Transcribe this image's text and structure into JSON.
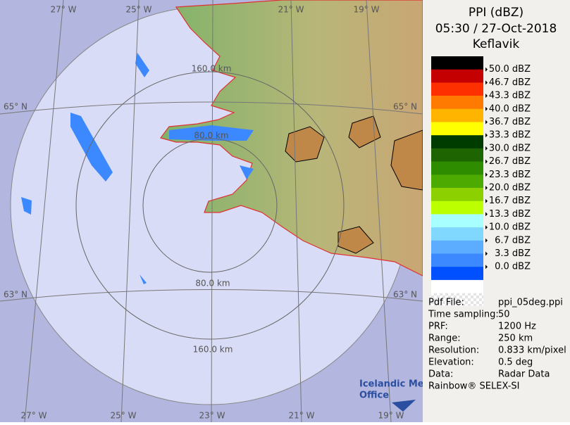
{
  "header": {
    "title": "PPI (dBZ)",
    "datetime": "05:30 / 27-Oct-2018",
    "site": "Keflavik"
  },
  "legend": {
    "colors": [
      "#000000",
      "#c40000",
      "#ff3000",
      "#ff7a00",
      "#ffb400",
      "#ffff00",
      "#003c00",
      "#1e6400",
      "#2e8c00",
      "#4caa00",
      "#8cd000",
      "#bcff00",
      "#a8ffff",
      "#80d8ff",
      "#5cacff",
      "#3c88ff",
      "#0050ff",
      "#ffffff"
    ],
    "labels": [
      "50.0 dBZ",
      "46.7 dBZ",
      "43.3 dBZ",
      "40.0 dBZ",
      "36.7 dBZ",
      "33.3 dBZ",
      "30.0 dBZ",
      "26.7 dBZ",
      "23.3 dBZ",
      "20.0 dBZ",
      "16.7 dBZ",
      "13.3 dBZ",
      "10.0 dBZ",
      "6.7 dBZ",
      "3.3 dBZ",
      "0.0 dBZ"
    ]
  },
  "info": [
    [
      "Pdf File:",
      "ppi_05deg.ppi"
    ],
    [
      "Time sampling:",
      "50"
    ],
    [
      "PRF:",
      "1200 Hz"
    ],
    [
      "Range:",
      "250 km"
    ],
    [
      "Resolution:",
      "0.833 km/pixel"
    ],
    [
      "Elevation:",
      "0.5 deg"
    ],
    [
      "Data:",
      "Radar Data"
    ]
  ],
  "footer": "Rainbow® SELEX-SI",
  "map": {
    "lon_labels_top": [
      "27° W",
      "25° W",
      "21° W",
      "19° W"
    ],
    "lon_labels_bottom": [
      "27° W",
      "25° W",
      "23° W",
      "21° W",
      "19° W"
    ],
    "lat_labels_left": [
      "65° N",
      "63° N"
    ],
    "lat_labels_right": [
      "65° N",
      "63° N"
    ],
    "range_labels": [
      "160.0 km",
      "80.0 km",
      "80.0 km",
      "160.0 km"
    ]
  },
  "logo": [
    "Icelandic Met",
    "Office"
  ]
}
